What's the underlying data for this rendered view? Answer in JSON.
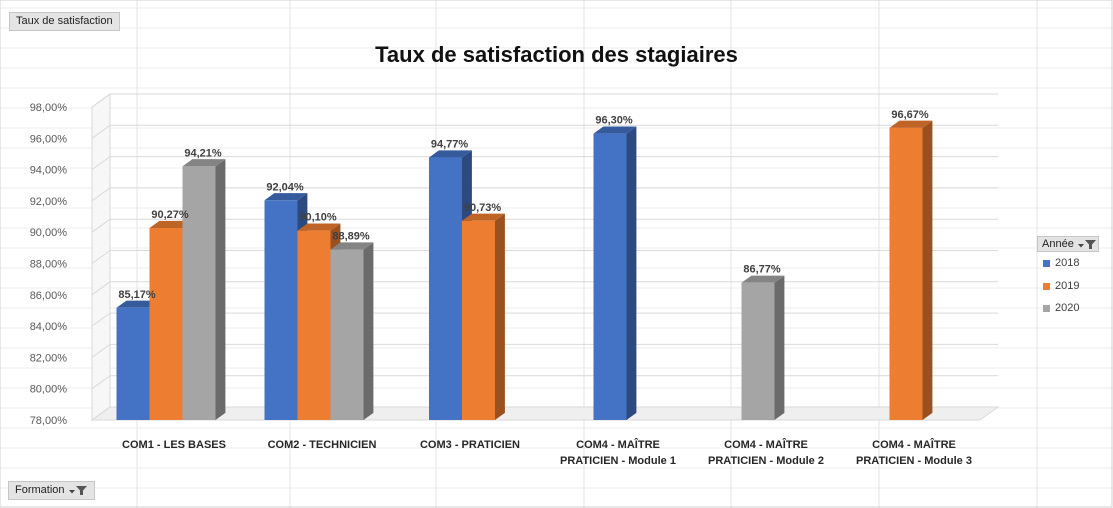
{
  "pivot": {
    "value_field_label": "Taux de satisfaction",
    "axis_field_label": "Formation",
    "legend_field_label": "Année"
  },
  "colors": {
    "2018": "#4472c4",
    "2019": "#ed7d31",
    "2020": "#a5a5a5"
  },
  "icons": [
    "dropdown-arrow-icon",
    "filter-icon"
  ],
  "chart_data": {
    "type": "bar",
    "title": "Taux de satisfaction des stagiaires",
    "xlabel": "",
    "ylabel": "",
    "ylim": [
      78,
      98
    ],
    "y_ticks": [
      "78,00%",
      "80,00%",
      "82,00%",
      "84,00%",
      "86,00%",
      "88,00%",
      "90,00%",
      "92,00%",
      "94,00%",
      "96,00%",
      "98,00%"
    ],
    "categories": [
      "COM1 - LES BASES",
      "COM2 - TECHNICIEN",
      "COM3 - PRATICIEN",
      "COM4 - MAÎTRE PRATICIEN - Module 1",
      "COM4 - MAÎTRE PRATICIEN - Module 2",
      "COM4 - MAÎTRE PRATICIEN - Module 3"
    ],
    "category_lines": [
      [
        "COM1 - LES BASES"
      ],
      [
        "COM2 - TECHNICIEN"
      ],
      [
        "COM3 - PRATICIEN"
      ],
      [
        "COM4 - MAÎTRE",
        "PRATICIEN - Module 1"
      ],
      [
        "COM4 - MAÎTRE",
        "PRATICIEN - Module 2"
      ],
      [
        "COM4 - MAÎTRE",
        "PRATICIEN - Module 3"
      ]
    ],
    "series": [
      {
        "name": "2018",
        "values": [
          85.17,
          92.04,
          94.77,
          96.3,
          null,
          null
        ],
        "labels": [
          "85,17%",
          "92,04%",
          "94,77%",
          "96,30%",
          null,
          null
        ]
      },
      {
        "name": "2019",
        "values": [
          90.27,
          90.1,
          90.73,
          null,
          null,
          96.67
        ],
        "labels": [
          "90,27%",
          "90,10%",
          "90,73%",
          null,
          null,
          "96,67%"
        ]
      },
      {
        "name": "2020",
        "values": [
          94.21,
          88.89,
          null,
          null,
          86.77,
          null
        ],
        "labels": [
          "94,21%",
          "88,89%",
          null,
          null,
          "86,77%",
          null
        ]
      }
    ],
    "legend_position": "right",
    "grid": true,
    "style": "3d-clustered-column"
  }
}
